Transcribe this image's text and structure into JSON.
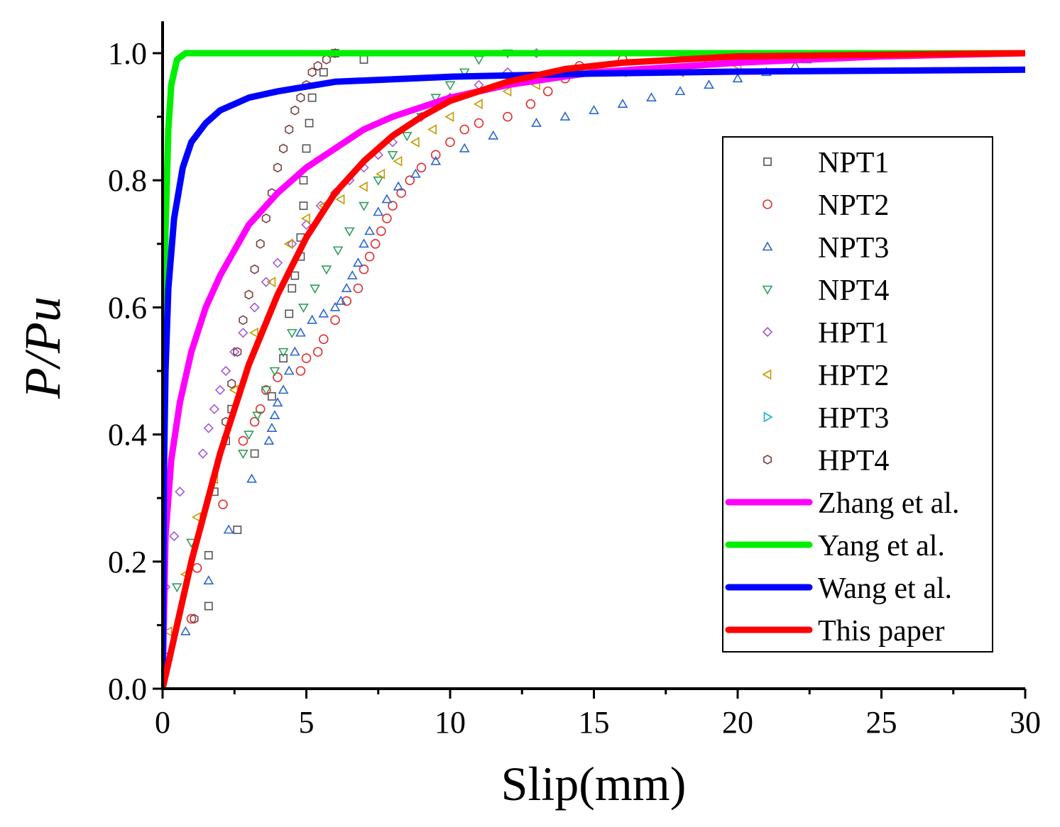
{
  "chart_data": {
    "type": "scatter",
    "xlabel": "Slip(mm)",
    "ylabel": "P/Pu",
    "xlim": [
      0,
      30
    ],
    "ylim": [
      0,
      1.05
    ],
    "xticks": [
      "0",
      "5",
      "10",
      "15",
      "20",
      "25",
      "30"
    ],
    "yticks": [
      "0.0",
      "0.2",
      "0.4",
      "0.6",
      "0.8",
      "1.0"
    ],
    "grid": false,
    "legend_position": "right",
    "series": [
      {
        "name": "NPT1",
        "kind": "markers",
        "marker": "square",
        "color": "#555555",
        "points": [
          [
            0.2,
            0.05
          ],
          [
            1.6,
            0.13
          ],
          [
            1.6,
            0.21
          ],
          [
            1.8,
            0.31
          ],
          [
            2.2,
            0.39
          ],
          [
            2.4,
            0.44
          ],
          [
            2.6,
            0.25
          ],
          [
            3.2,
            0.37
          ],
          [
            3.8,
            0.46
          ],
          [
            4.2,
            0.52
          ],
          [
            4.4,
            0.59
          ],
          [
            4.5,
            0.63
          ],
          [
            4.6,
            0.65
          ],
          [
            4.8,
            0.68
          ],
          [
            4.8,
            0.71
          ],
          [
            4.9,
            0.76
          ],
          [
            4.9,
            0.8
          ],
          [
            5.0,
            0.85
          ],
          [
            5.1,
            0.89
          ],
          [
            5.2,
            0.93
          ],
          [
            5.6,
            0.97
          ],
          [
            6.0,
            1.0
          ],
          [
            7.0,
            0.99
          ]
        ]
      },
      {
        "name": "NPT2",
        "kind": "markers",
        "marker": "circle",
        "color": "#e03030",
        "points": [
          [
            1.0,
            0.11
          ],
          [
            1.2,
            0.19
          ],
          [
            2.1,
            0.29
          ],
          [
            2.8,
            0.39
          ],
          [
            3.2,
            0.42
          ],
          [
            3.4,
            0.44
          ],
          [
            3.6,
            0.47
          ],
          [
            4.0,
            0.49
          ],
          [
            4.8,
            0.5
          ],
          [
            5.0,
            0.52
          ],
          [
            5.4,
            0.53
          ],
          [
            5.6,
            0.55
          ],
          [
            6.0,
            0.58
          ],
          [
            6.4,
            0.61
          ],
          [
            6.8,
            0.63
          ],
          [
            7.0,
            0.66
          ],
          [
            7.2,
            0.68
          ],
          [
            7.4,
            0.7
          ],
          [
            7.6,
            0.72
          ],
          [
            7.8,
            0.74
          ],
          [
            8.0,
            0.76
          ],
          [
            8.3,
            0.78
          ],
          [
            8.6,
            0.8
          ],
          [
            9.0,
            0.82
          ],
          [
            9.5,
            0.84
          ],
          [
            10.0,
            0.86
          ],
          [
            10.5,
            0.88
          ],
          [
            11.0,
            0.89
          ],
          [
            12.0,
            0.9
          ],
          [
            12.8,
            0.92
          ],
          [
            13.4,
            0.94
          ],
          [
            14.0,
            0.96
          ],
          [
            14.5,
            0.98
          ],
          [
            16.0,
            0.99
          ],
          [
            19.0,
            0.99
          ]
        ]
      },
      {
        "name": "NPT3",
        "kind": "markers",
        "marker": "triangle-up",
        "color": "#2a66d0",
        "points": [
          [
            0.8,
            0.09
          ],
          [
            1.6,
            0.17
          ],
          [
            2.3,
            0.25
          ],
          [
            3.1,
            0.33
          ],
          [
            3.7,
            0.39
          ],
          [
            3.8,
            0.41
          ],
          [
            3.9,
            0.43
          ],
          [
            4.0,
            0.45
          ],
          [
            4.2,
            0.47
          ],
          [
            4.4,
            0.5
          ],
          [
            4.6,
            0.53
          ],
          [
            4.8,
            0.56
          ],
          [
            5.2,
            0.58
          ],
          [
            5.6,
            0.59
          ],
          [
            6.0,
            0.6
          ],
          [
            6.2,
            0.61
          ],
          [
            6.4,
            0.63
          ],
          [
            6.6,
            0.65
          ],
          [
            6.8,
            0.67
          ],
          [
            7.0,
            0.7
          ],
          [
            7.2,
            0.72
          ],
          [
            7.5,
            0.75
          ],
          [
            7.8,
            0.77
          ],
          [
            8.2,
            0.79
          ],
          [
            8.8,
            0.81
          ],
          [
            9.5,
            0.83
          ],
          [
            10.5,
            0.85
          ],
          [
            11.5,
            0.87
          ],
          [
            13.0,
            0.89
          ],
          [
            14.0,
            0.9
          ],
          [
            15.0,
            0.91
          ],
          [
            16.0,
            0.92
          ],
          [
            17.0,
            0.93
          ],
          [
            18.0,
            0.94
          ],
          [
            19.0,
            0.95
          ],
          [
            20.0,
            0.96
          ],
          [
            21.0,
            0.97
          ],
          [
            22.0,
            0.98
          ],
          [
            22.4,
            0.99
          ]
        ]
      },
      {
        "name": "NPT4",
        "kind": "markers",
        "marker": "triangle-down",
        "color": "#2e9e5a",
        "points": [
          [
            0.5,
            0.16
          ],
          [
            1.0,
            0.23
          ],
          [
            2.8,
            0.37
          ],
          [
            3.0,
            0.4
          ],
          [
            3.3,
            0.43
          ],
          [
            3.6,
            0.47
          ],
          [
            3.9,
            0.5
          ],
          [
            4.2,
            0.53
          ],
          [
            4.5,
            0.56
          ],
          [
            4.9,
            0.6
          ],
          [
            5.3,
            0.63
          ],
          [
            5.7,
            0.66
          ],
          [
            6.1,
            0.69
          ],
          [
            6.5,
            0.72
          ],
          [
            7.0,
            0.76
          ],
          [
            7.5,
            0.8
          ],
          [
            8.0,
            0.84
          ],
          [
            8.5,
            0.87
          ],
          [
            9.0,
            0.9
          ],
          [
            9.5,
            0.93
          ],
          [
            10.0,
            0.95
          ],
          [
            10.5,
            0.97
          ],
          [
            11.0,
            0.99
          ],
          [
            12.0,
            1.0
          ]
        ]
      },
      {
        "name": "HPT1",
        "kind": "markers",
        "marker": "diamond",
        "color": "#a25ad8",
        "points": [
          [
            0.1,
            0.16
          ],
          [
            0.4,
            0.24
          ],
          [
            0.6,
            0.31
          ],
          [
            1.4,
            0.37
          ],
          [
            1.6,
            0.41
          ],
          [
            1.8,
            0.44
          ],
          [
            2.0,
            0.47
          ],
          [
            2.2,
            0.5
          ],
          [
            2.5,
            0.53
          ],
          [
            2.8,
            0.56
          ],
          [
            3.2,
            0.6
          ],
          [
            3.6,
            0.64
          ],
          [
            4.0,
            0.67
          ],
          [
            4.5,
            0.7
          ],
          [
            5.0,
            0.73
          ],
          [
            5.5,
            0.76
          ],
          [
            6.0,
            0.78
          ],
          [
            6.5,
            0.8
          ],
          [
            7.0,
            0.82
          ],
          [
            7.5,
            0.84
          ],
          [
            8.0,
            0.86
          ],
          [
            9.0,
            0.9
          ],
          [
            10.0,
            0.93
          ],
          [
            11.0,
            0.95
          ],
          [
            12.0,
            0.97
          ],
          [
            13.0,
            1.0
          ]
        ]
      },
      {
        "name": "HPT2",
        "kind": "markers",
        "marker": "triangle-left",
        "color": "#c49a00",
        "points": [
          [
            0.2,
            0.09
          ],
          [
            0.8,
            0.18
          ],
          [
            1.2,
            0.27
          ],
          [
            1.8,
            0.33
          ],
          [
            2.5,
            0.47
          ],
          [
            3.2,
            0.56
          ],
          [
            3.8,
            0.64
          ],
          [
            4.4,
            0.7
          ],
          [
            5.0,
            0.74
          ],
          [
            5.6,
            0.76
          ],
          [
            6.2,
            0.77
          ],
          [
            7.0,
            0.79
          ],
          [
            7.6,
            0.81
          ],
          [
            8.2,
            0.83
          ],
          [
            8.8,
            0.86
          ],
          [
            9.4,
            0.88
          ],
          [
            10.0,
            0.9
          ],
          [
            11.0,
            0.92
          ],
          [
            12.0,
            0.94
          ],
          [
            13.0,
            0.95
          ],
          [
            14.5,
            0.97
          ],
          [
            16.0,
            0.97
          ],
          [
            18.0,
            0.97
          ],
          [
            20.0,
            0.98
          ],
          [
            20.6,
            0.99
          ]
        ]
      },
      {
        "name": "HPT3",
        "kind": "markers",
        "marker": "triangle-right",
        "color": "#1ab3c8",
        "points": []
      },
      {
        "name": "HPT4",
        "kind": "markers",
        "marker": "hexagon",
        "color": "#7a4040",
        "points": [
          [
            1.1,
            0.11
          ],
          [
            2.2,
            0.42
          ],
          [
            2.4,
            0.48
          ],
          [
            2.6,
            0.53
          ],
          [
            2.8,
            0.58
          ],
          [
            3.0,
            0.62
          ],
          [
            3.2,
            0.66
          ],
          [
            3.4,
            0.7
          ],
          [
            3.6,
            0.74
          ],
          [
            3.8,
            0.78
          ],
          [
            4.0,
            0.82
          ],
          [
            4.2,
            0.85
          ],
          [
            4.4,
            0.88
          ],
          [
            4.6,
            0.91
          ],
          [
            4.8,
            0.93
          ],
          [
            5.0,
            0.95
          ],
          [
            5.2,
            0.97
          ],
          [
            5.4,
            0.98
          ],
          [
            5.7,
            0.99
          ],
          [
            6.0,
            1.0
          ]
        ]
      },
      {
        "name": "Zhang et al.",
        "kind": "line",
        "color": "#ff00ff",
        "points": [
          [
            0,
            0
          ],
          [
            0.1,
            0.24
          ],
          [
            0.3,
            0.36
          ],
          [
            0.6,
            0.45
          ],
          [
            1.0,
            0.53
          ],
          [
            1.5,
            0.6
          ],
          [
            2.0,
            0.65
          ],
          [
            3.0,
            0.73
          ],
          [
            4.0,
            0.78
          ],
          [
            5.0,
            0.82
          ],
          [
            6.0,
            0.85
          ],
          [
            7.0,
            0.88
          ],
          [
            8.0,
            0.9
          ],
          [
            10.0,
            0.93
          ],
          [
            12.0,
            0.95
          ],
          [
            15.0,
            0.97
          ],
          [
            20.0,
            0.985
          ],
          [
            25.0,
            0.995
          ],
          [
            30.0,
            1.0
          ]
        ]
      },
      {
        "name": "Yang et al.",
        "kind": "line",
        "color": "#00ee00",
        "points": [
          [
            0,
            0
          ],
          [
            0.05,
            0.55
          ],
          [
            0.1,
            0.72
          ],
          [
            0.2,
            0.88
          ],
          [
            0.3,
            0.95
          ],
          [
            0.5,
            0.99
          ],
          [
            0.8,
            1.0
          ],
          [
            30.0,
            1.0
          ]
        ]
      },
      {
        "name": "Wang et al.",
        "kind": "line",
        "color": "#0000ff",
        "points": [
          [
            0,
            0
          ],
          [
            0.05,
            0.35
          ],
          [
            0.1,
            0.5
          ],
          [
            0.2,
            0.63
          ],
          [
            0.4,
            0.74
          ],
          [
            0.7,
            0.82
          ],
          [
            1.0,
            0.86
          ],
          [
            1.5,
            0.89
          ],
          [
            2.0,
            0.91
          ],
          [
            3.0,
            0.93
          ],
          [
            4.0,
            0.94
          ],
          [
            6.0,
            0.955
          ],
          [
            10.0,
            0.963
          ],
          [
            15.0,
            0.968
          ],
          [
            20.0,
            0.971
          ],
          [
            30.0,
            0.974
          ]
        ]
      },
      {
        "name": "This paper",
        "kind": "line",
        "color": "#ff0000",
        "points": [
          [
            0,
            0
          ],
          [
            0.5,
            0.1
          ],
          [
            1.0,
            0.2
          ],
          [
            2.0,
            0.37
          ],
          [
            3.0,
            0.51
          ],
          [
            4.0,
            0.62
          ],
          [
            5.0,
            0.71
          ],
          [
            6.0,
            0.78
          ],
          [
            7.0,
            0.83
          ],
          [
            8.0,
            0.87
          ],
          [
            9.0,
            0.9
          ],
          [
            10.0,
            0.925
          ],
          [
            12.0,
            0.955
          ],
          [
            14.0,
            0.975
          ],
          [
            16.0,
            0.985
          ],
          [
            20.0,
            0.995
          ],
          [
            30.0,
            1.0
          ]
        ]
      }
    ]
  }
}
